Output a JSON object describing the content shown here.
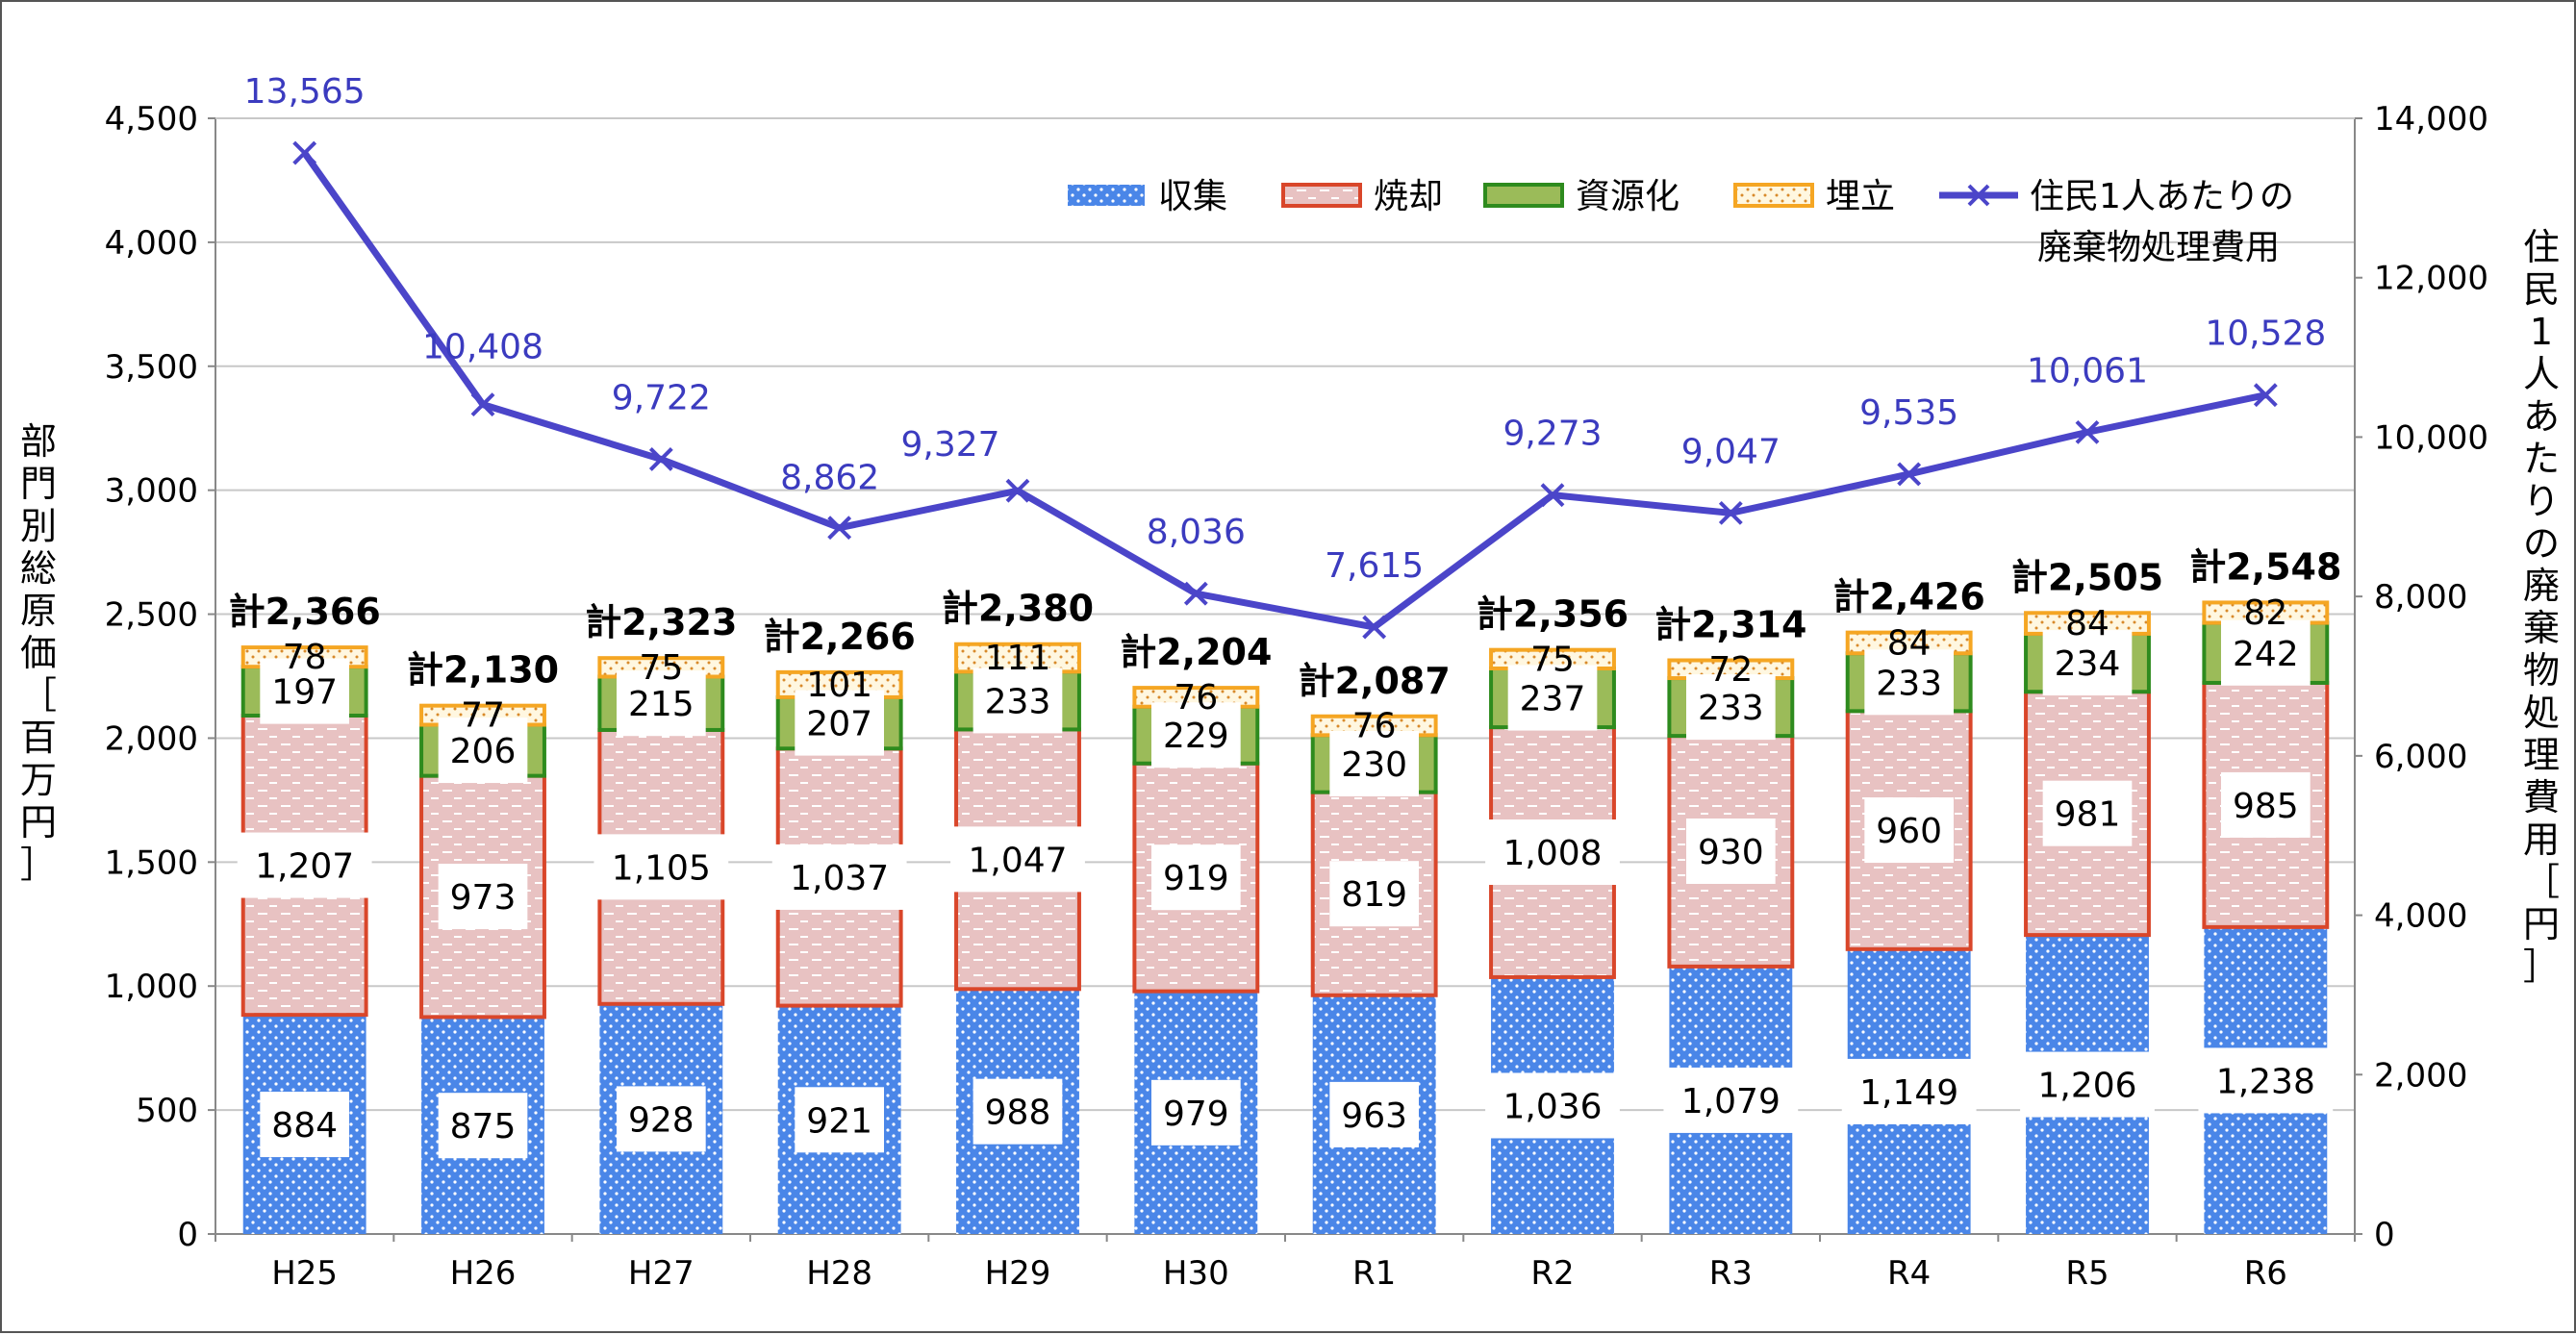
{
  "chart_data": {
    "type": "bar",
    "stacked": true,
    "categories": [
      "H25",
      "H26",
      "H27",
      "H28",
      "H29",
      "H30",
      "R1",
      "R2",
      "R3",
      "R4",
      "R5",
      "R6"
    ],
    "series": [
      {
        "name": "収集",
        "color": "#4a86e8",
        "values": [
          884,
          875,
          928,
          921,
          988,
          979,
          963,
          1036,
          1079,
          1149,
          1206,
          1238
        ],
        "labels": [
          "884",
          "875",
          "928",
          "921",
          "988",
          "979",
          "963",
          "1,036",
          "1,079",
          "1,149",
          "1,206",
          "1,238"
        ]
      },
      {
        "name": "焼却",
        "color": "#e6b8b8",
        "edge": "#d9462a",
        "values": [
          1207,
          973,
          1105,
          1037,
          1047,
          919,
          819,
          1008,
          930,
          960,
          981,
          985
        ],
        "labels": [
          "1,207",
          "973",
          "1,105",
          "1,037",
          "1,047",
          "919",
          "819",
          "1,008",
          "930",
          "960",
          "981",
          "985"
        ]
      },
      {
        "name": "資源化",
        "color": "#9bbb59",
        "edge": "#2e8b1e",
        "values": [
          197,
          206,
          215,
          207,
          233,
          229,
          230,
          237,
          233,
          233,
          234,
          242
        ],
        "labels": [
          "197",
          "206",
          "215",
          "207",
          "233",
          "229",
          "230",
          "237",
          "233",
          "233",
          "234",
          "242"
        ]
      },
      {
        "name": "埋立",
        "color": "#fff4d6",
        "edge": "#f5a623",
        "values": [
          78,
          77,
          75,
          101,
          111,
          76,
          76,
          75,
          72,
          84,
          84,
          82
        ],
        "labels": [
          "78",
          "77",
          "75",
          "101",
          "111",
          "76",
          "76",
          "75",
          "72",
          "84",
          "84",
          "82"
        ]
      }
    ],
    "totals": [
      "計2,366",
      "計2,130",
      "計2,323",
      "計2,266",
      "計2,380",
      "計2,204",
      "計2,087",
      "計2,356",
      "計2,314",
      "計2,426",
      "計2,505",
      "計2,548"
    ],
    "line": {
      "name": "住民1人あたりの廃棄物処理費用",
      "name_lines": [
        "住民1人あたりの",
        "廃棄物処理費用"
      ],
      "color": "#4b45c9",
      "values": [
        13565,
        10408,
        9722,
        8862,
        9327,
        8036,
        7615,
        9273,
        9047,
        9535,
        10061,
        10528
      ],
      "labels": [
        "13,565",
        "10,408",
        "9,722",
        "8,862",
        "9,327",
        "8,036",
        "7,615",
        "9,273",
        "9,047",
        "9,535",
        "10,061",
        "10,528"
      ],
      "axis": "right"
    },
    "ylabel": "部門別総原価［百万円］",
    "y2label": "住民1人あたりの廃棄物処理費用［円］",
    "ylim": [
      0,
      4500
    ],
    "y_ticks": [
      0,
      500,
      1000,
      1500,
      2000,
      2500,
      3000,
      3500,
      4000,
      4500
    ],
    "y_tick_labels": [
      "0",
      "500",
      "1,000",
      "1,500",
      "2,000",
      "2,500",
      "3,000",
      "3,500",
      "4,000",
      "4,500"
    ],
    "y2lim": [
      0,
      14000
    ],
    "y2_ticks": [
      0,
      2000,
      4000,
      6000,
      8000,
      10000,
      12000,
      14000
    ],
    "y2_tick_labels": [
      "0",
      "2,000",
      "4,000",
      "6,000",
      "8,000",
      "10,000",
      "12,000",
      "14,000"
    ],
    "grid": true,
    "legend": "top-right"
  }
}
